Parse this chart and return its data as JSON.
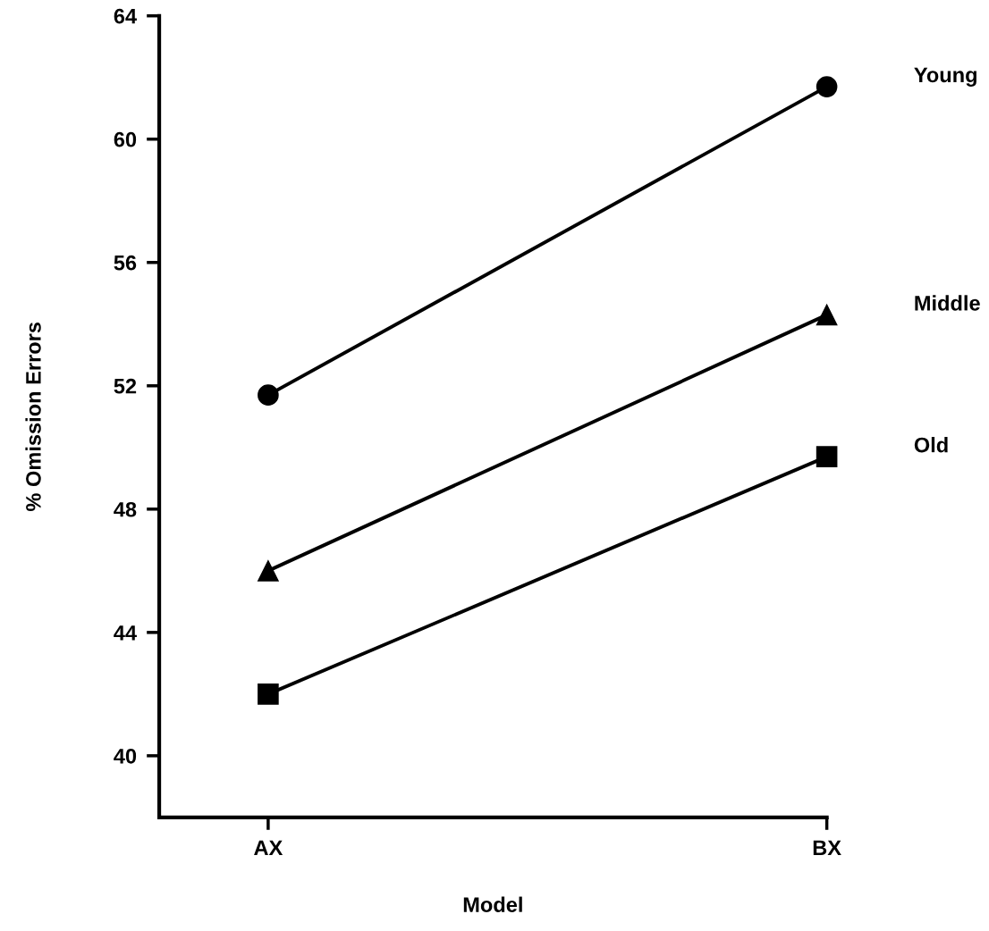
{
  "chart_data": {
    "type": "line",
    "xlabel": "Model",
    "ylabel": "% Omission Errors",
    "categories": [
      "AX",
      "BX"
    ],
    "series": [
      {
        "name": "Young",
        "color": "#000000",
        "marker": "circle",
        "values": [
          51.7,
          61.7
        ]
      },
      {
        "name": "Middle",
        "color": "#000000",
        "marker": "triangle",
        "values": [
          46.0,
          54.3
        ]
      },
      {
        "name": "Old",
        "color": "#000000",
        "marker": "square",
        "values": [
          42.0,
          49.7
        ]
      }
    ],
    "ylim": [
      38,
      64
    ],
    "yticks": [
      40,
      44,
      48,
      52,
      56,
      60,
      64
    ],
    "grid": false,
    "legend": false,
    "line_style": "solid"
  }
}
